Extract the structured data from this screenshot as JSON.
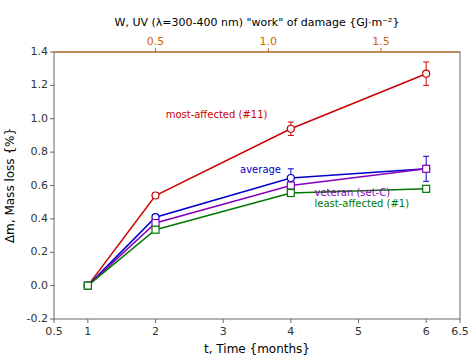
{
  "chart_data": {
    "type": "line",
    "x": [
      1,
      2,
      4,
      6
    ],
    "series": [
      {
        "color": "#cc0000",
        "marker": "circle",
        "values": [
          0.0,
          0.54,
          0.94,
          1.27
        ],
        "errors": [
          0.01,
          0.015,
          0.04,
          0.07
        ]
      },
      {
        "color": "#0000cc",
        "marker": "circle",
        "values": [
          0.0,
          0.41,
          0.645,
          0.7
        ],
        "errors": [
          0.0,
          0.01,
          0.055,
          0.075
        ]
      },
      {
        "color": "#8800bb",
        "marker": "square",
        "values": [
          0.0,
          0.375,
          0.6,
          0.7
        ],
        "errors": [
          0.0,
          0.01,
          0.02,
          0.015
        ]
      },
      {
        "color": "#007700",
        "marker": "square",
        "values": [
          0.0,
          0.335,
          0.555,
          0.58
        ],
        "errors": [
          0.0,
          0.01,
          0.015,
          0.01
        ]
      }
    ],
    "xlim": [
      0.5,
      6.5
    ],
    "ylim": [
      -0.2,
      1.4
    ],
    "xticks": [
      0.5,
      1,
      2,
      3,
      4,
      5,
      6,
      6.5
    ],
    "yticks": [
      -0.2,
      {
        "value": 0,
        "label": "0.0"
      },
      0.2,
      0.4,
      0.6,
      0.8,
      {
        "value": 1,
        "label": "1.0"
      },
      1.2,
      1.4
    ],
    "x_label": "t, Time {months}",
    "y_label": "Δm, Mass loss {%}",
    "x2axis": {
      "label": "W, UV (λ=300-400 nm) \"work\" of damage {GJ·m⁻²}",
      "lim": [
        0.05,
        1.85
      ],
      "ticks": [
        0.5,
        {
          "value": 1,
          "label": "1.0"
        },
        1.5
      ],
      "color": "#cc6600"
    },
    "annotations": [
      {
        "text": "most-affected (#11)",
        "x": 2.15,
        "y": 1.02,
        "color": "#cc0000"
      },
      {
        "text": "average",
        "x": 3.25,
        "y": 0.695,
        "color": "#0000cc"
      },
      {
        "text": "veteran (set-C)",
        "x": 4.35,
        "y": 0.555,
        "color": "#8800bb"
      },
      {
        "text": "least-affected (#1)",
        "x": 4.35,
        "y": 0.49,
        "color": "#007700"
      }
    ],
    "grid": false
  }
}
